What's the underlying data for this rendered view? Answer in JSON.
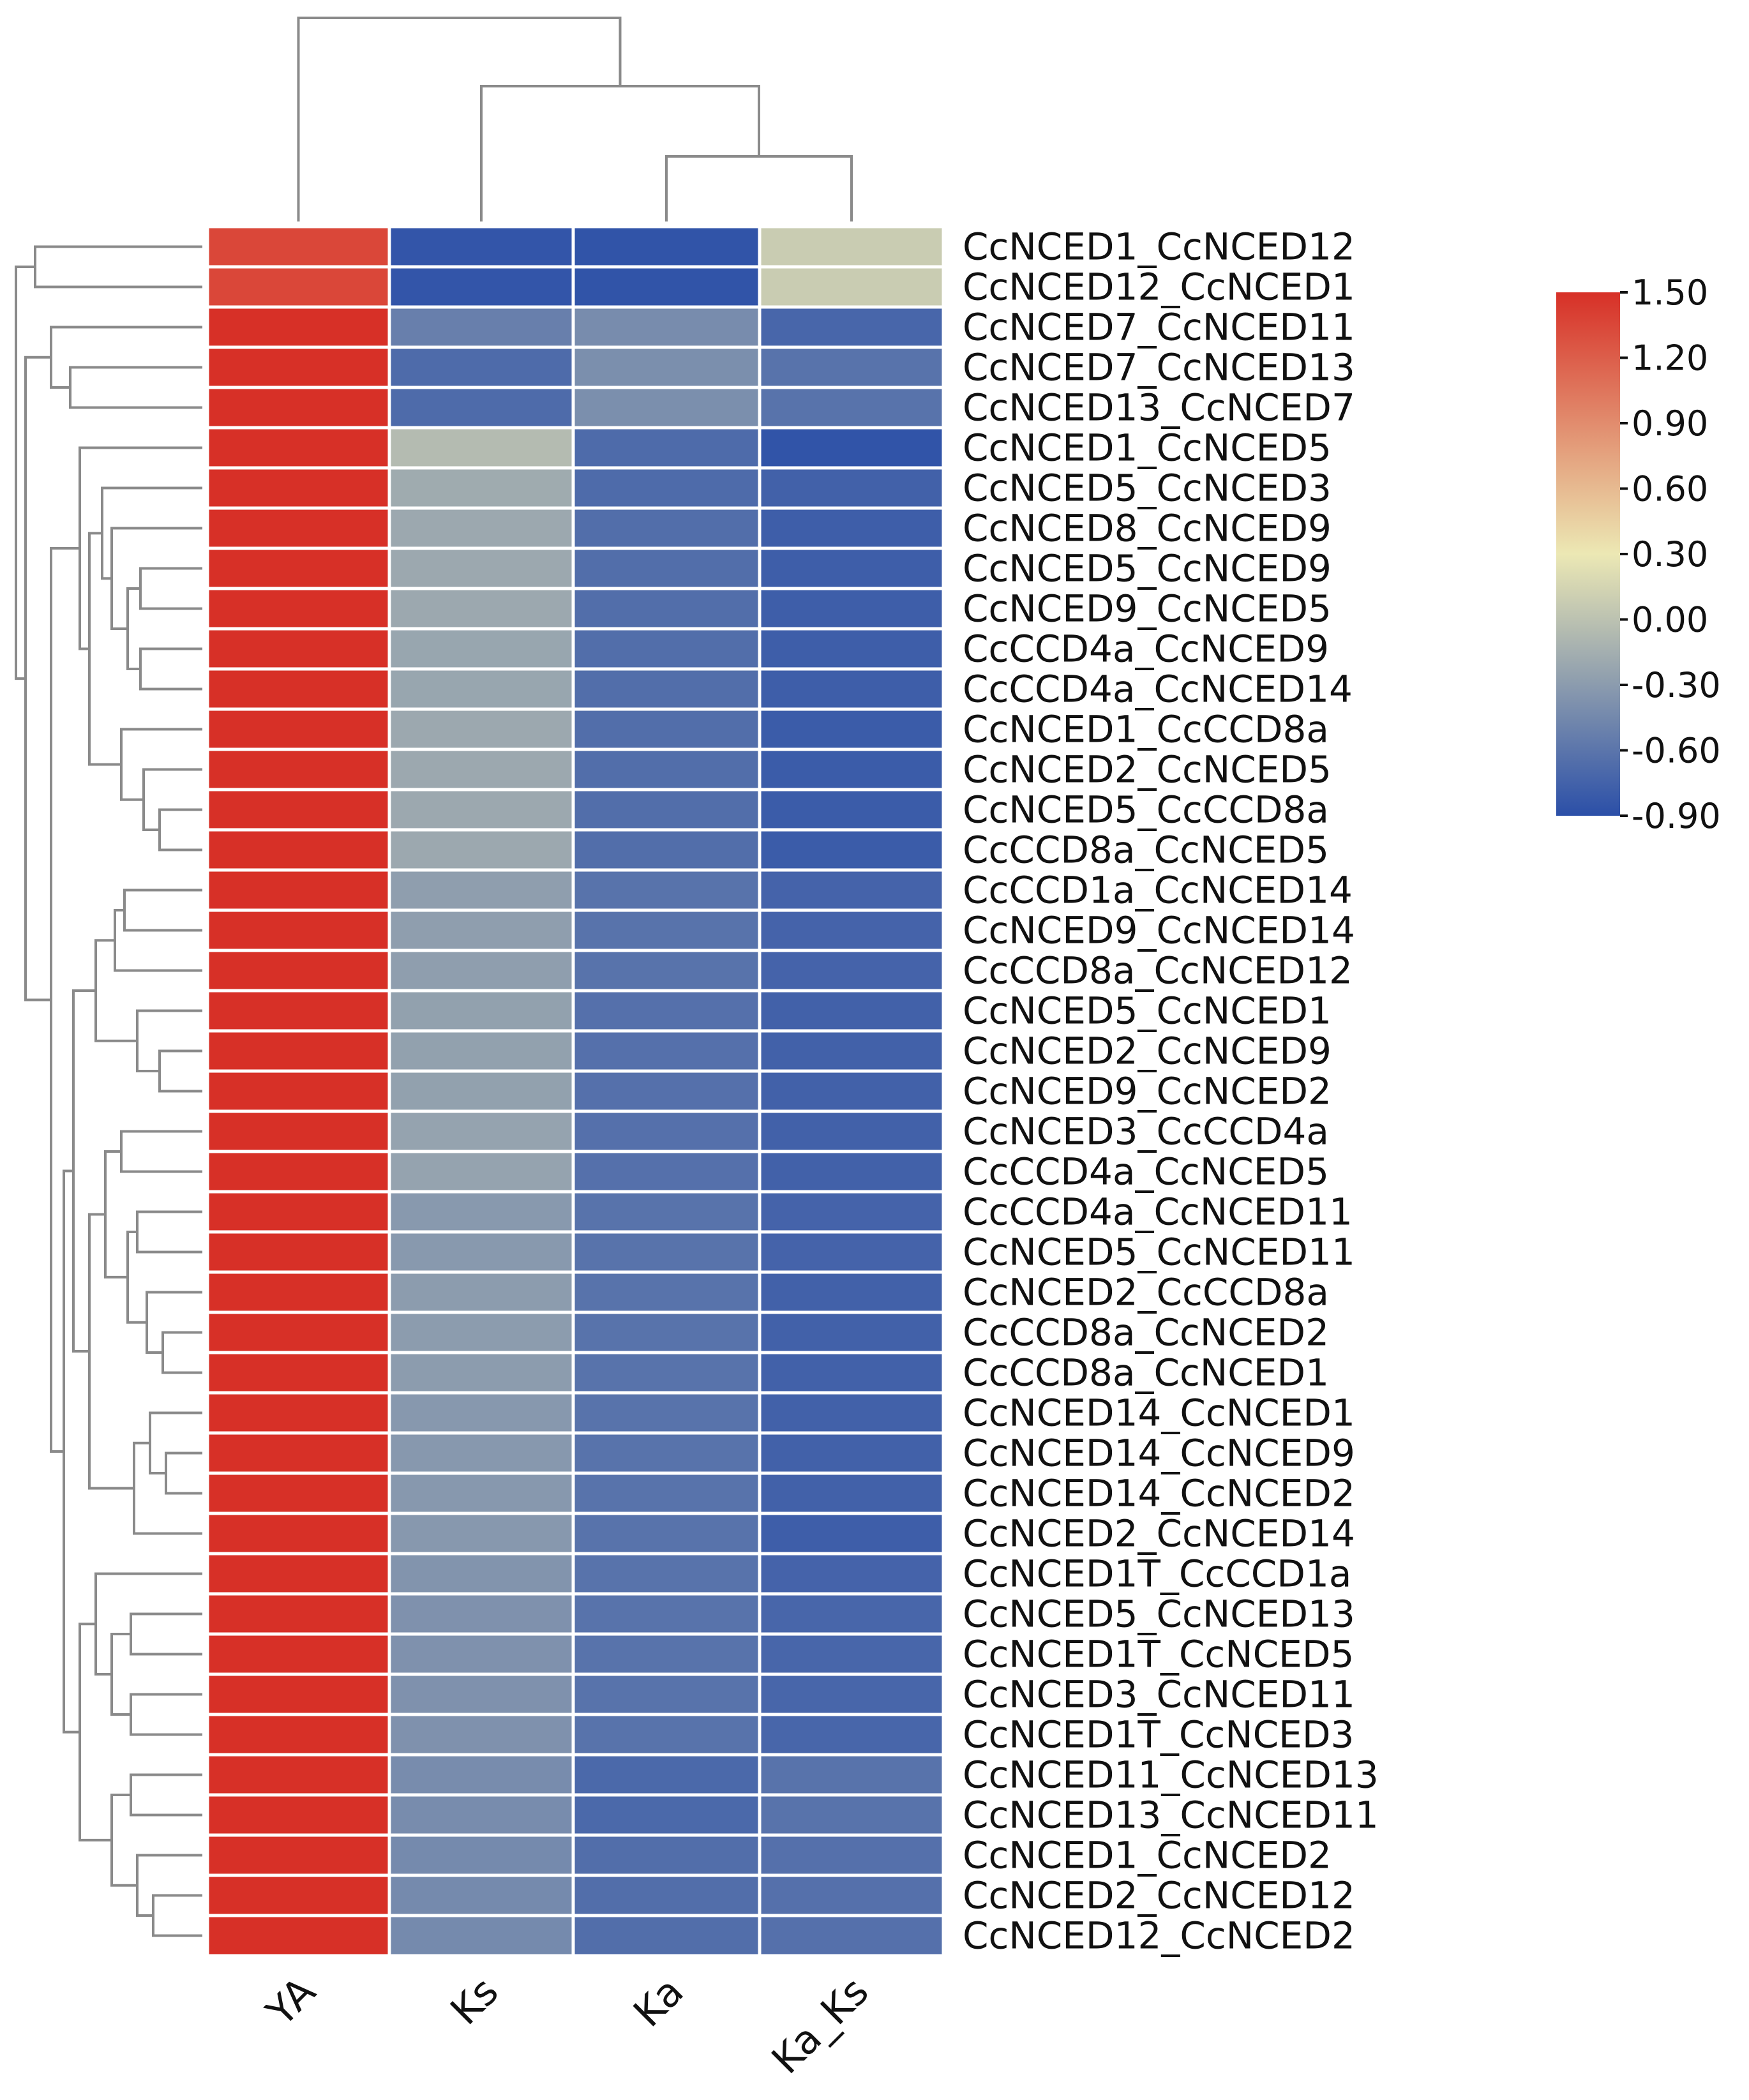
{
  "chart_data": {
    "type": "heatmap",
    "title": "",
    "columns": [
      "YA",
      "Ks",
      "Ka",
      "Ka_Ks"
    ],
    "rows": [
      {
        "label": "CcNCED1_CcNCED12",
        "values": [
          1.35,
          -0.85,
          -0.86,
          0.08
        ]
      },
      {
        "label": "CcNCED12_CcNCED1",
        "values": [
          1.35,
          -0.85,
          -0.86,
          0.08
        ]
      },
      {
        "label": "CcNCED7_CcNCED11",
        "values": [
          1.5,
          -0.52,
          -0.42,
          -0.72
        ]
      },
      {
        "label": "CcNCED7_CcNCED13",
        "values": [
          1.5,
          -0.68,
          -0.4,
          -0.62
        ]
      },
      {
        "label": "CcNCED13_CcNCED7",
        "values": [
          1.5,
          -0.68,
          -0.4,
          -0.62
        ]
      },
      {
        "label": "CcNCED1_CcNCED5",
        "values": [
          1.5,
          -0.05,
          -0.68,
          -0.86
        ]
      },
      {
        "label": "CcNCED5_CcNCED3",
        "values": [
          1.5,
          -0.18,
          -0.68,
          -0.76
        ]
      },
      {
        "label": "CcNCED8_CcNCED9",
        "values": [
          1.5,
          -0.2,
          -0.66,
          -0.78
        ]
      },
      {
        "label": "CcNCED5_CcNCED9",
        "values": [
          1.5,
          -0.2,
          -0.66,
          -0.78
        ]
      },
      {
        "label": "CcNCED9_CcNCED5",
        "values": [
          1.5,
          -0.2,
          -0.66,
          -0.78
        ]
      },
      {
        "label": "CcCCD4a_CcNCED9",
        "values": [
          1.5,
          -0.22,
          -0.66,
          -0.78
        ]
      },
      {
        "label": "CcCCD4a_CcNCED14",
        "values": [
          1.5,
          -0.22,
          -0.66,
          -0.78
        ]
      },
      {
        "label": "CcNCED1_CcCCD8a",
        "values": [
          1.5,
          -0.2,
          -0.66,
          -0.8
        ]
      },
      {
        "label": "CcNCED2_CcNCED5",
        "values": [
          1.5,
          -0.2,
          -0.66,
          -0.8
        ]
      },
      {
        "label": "CcNCED5_CcCCD8a",
        "values": [
          1.5,
          -0.2,
          -0.66,
          -0.8
        ]
      },
      {
        "label": "CcCCD8a_CcNCED5",
        "values": [
          1.5,
          -0.2,
          -0.66,
          -0.8
        ]
      },
      {
        "label": "CcCCD1a_CcNCED14",
        "values": [
          1.5,
          -0.28,
          -0.62,
          -0.74
        ]
      },
      {
        "label": "CcNCED9_CcNCED14",
        "values": [
          1.5,
          -0.28,
          -0.62,
          -0.74
        ]
      },
      {
        "label": "CcCCD8a_CcNCED12",
        "values": [
          1.5,
          -0.28,
          -0.62,
          -0.74
        ]
      },
      {
        "label": "CcNCED5_CcNCED1",
        "values": [
          1.5,
          -0.26,
          -0.64,
          -0.76
        ]
      },
      {
        "label": "CcNCED2_CcNCED9",
        "values": [
          1.5,
          -0.26,
          -0.64,
          -0.76
        ]
      },
      {
        "label": "CcNCED9_CcNCED2",
        "values": [
          1.5,
          -0.26,
          -0.64,
          -0.76
        ]
      },
      {
        "label": "CcNCED3_CcCCD4a",
        "values": [
          1.5,
          -0.24,
          -0.64,
          -0.76
        ]
      },
      {
        "label": "CcCCD4a_CcNCED5",
        "values": [
          1.5,
          -0.24,
          -0.64,
          -0.76
        ]
      },
      {
        "label": "CcCCD4a_CcNCED11",
        "values": [
          1.5,
          -0.32,
          -0.62,
          -0.74
        ]
      },
      {
        "label": "CcNCED5_CcNCED11",
        "values": [
          1.5,
          -0.32,
          -0.62,
          -0.74
        ]
      },
      {
        "label": "CcNCED2_CcCCD8a",
        "values": [
          1.5,
          -0.3,
          -0.62,
          -0.76
        ]
      },
      {
        "label": "CcCCD8a_CcNCED2",
        "values": [
          1.5,
          -0.3,
          -0.62,
          -0.76
        ]
      },
      {
        "label": "CcCCD8a_CcNCED1",
        "values": [
          1.5,
          -0.3,
          -0.62,
          -0.76
        ]
      },
      {
        "label": "CcNCED14_CcNCED1",
        "values": [
          1.5,
          -0.33,
          -0.62,
          -0.76
        ]
      },
      {
        "label": "CcNCED14_CcNCED9",
        "values": [
          1.5,
          -0.33,
          -0.62,
          -0.76
        ]
      },
      {
        "label": "CcNCED14_CcNCED2",
        "values": [
          1.5,
          -0.33,
          -0.62,
          -0.76
        ]
      },
      {
        "label": "CcNCED2_CcNCED14",
        "values": [
          1.5,
          -0.33,
          -0.62,
          -0.78
        ]
      },
      {
        "label": "CcNCED1T_CcCCD1a",
        "values": [
          1.5,
          -0.36,
          -0.62,
          -0.74
        ]
      },
      {
        "label": "CcNCED5_CcNCED13",
        "values": [
          1.5,
          -0.38,
          -0.62,
          -0.72
        ]
      },
      {
        "label": "CcNCED1T_CcNCED5",
        "values": [
          1.5,
          -0.38,
          -0.62,
          -0.72
        ]
      },
      {
        "label": "CcNCED3_CcNCED11",
        "values": [
          1.5,
          -0.38,
          -0.62,
          -0.72
        ]
      },
      {
        "label": "CcNCED1T_CcNCED3",
        "values": [
          1.5,
          -0.38,
          -0.62,
          -0.72
        ]
      },
      {
        "label": "CcNCED11_CcNCED13",
        "values": [
          1.5,
          -0.42,
          -0.7,
          -0.62
        ]
      },
      {
        "label": "CcNCED13_CcNCED11",
        "values": [
          1.5,
          -0.42,
          -0.7,
          -0.62
        ]
      },
      {
        "label": "CcNCED1_CcNCED2",
        "values": [
          1.5,
          -0.44,
          -0.66,
          -0.64
        ]
      },
      {
        "label": "CcNCED2_CcNCED12",
        "values": [
          1.5,
          -0.44,
          -0.66,
          -0.64
        ]
      },
      {
        "label": "CcNCED12_CcNCED2",
        "values": [
          1.5,
          -0.44,
          -0.66,
          -0.64
        ]
      }
    ],
    "colorbar": {
      "min": -0.9,
      "max": 1.5,
      "ticks": [
        "1.50",
        "1.20",
        "0.90",
        "0.60",
        "0.30",
        "0.00",
        "-0.30",
        "-0.60",
        "-0.90"
      ],
      "colors": {
        "low": "#2b4fa8",
        "mid": "#ece8b4",
        "high": "#d73027"
      },
      "mid_value": 0.3
    },
    "column_dendrogram": [
      [
        2,
        3
      ],
      [
        1,
        "n0"
      ],
      [
        0,
        "n1"
      ]
    ],
    "row_dendrogram": "hierarchical clustering tree (drawn as lines)"
  }
}
